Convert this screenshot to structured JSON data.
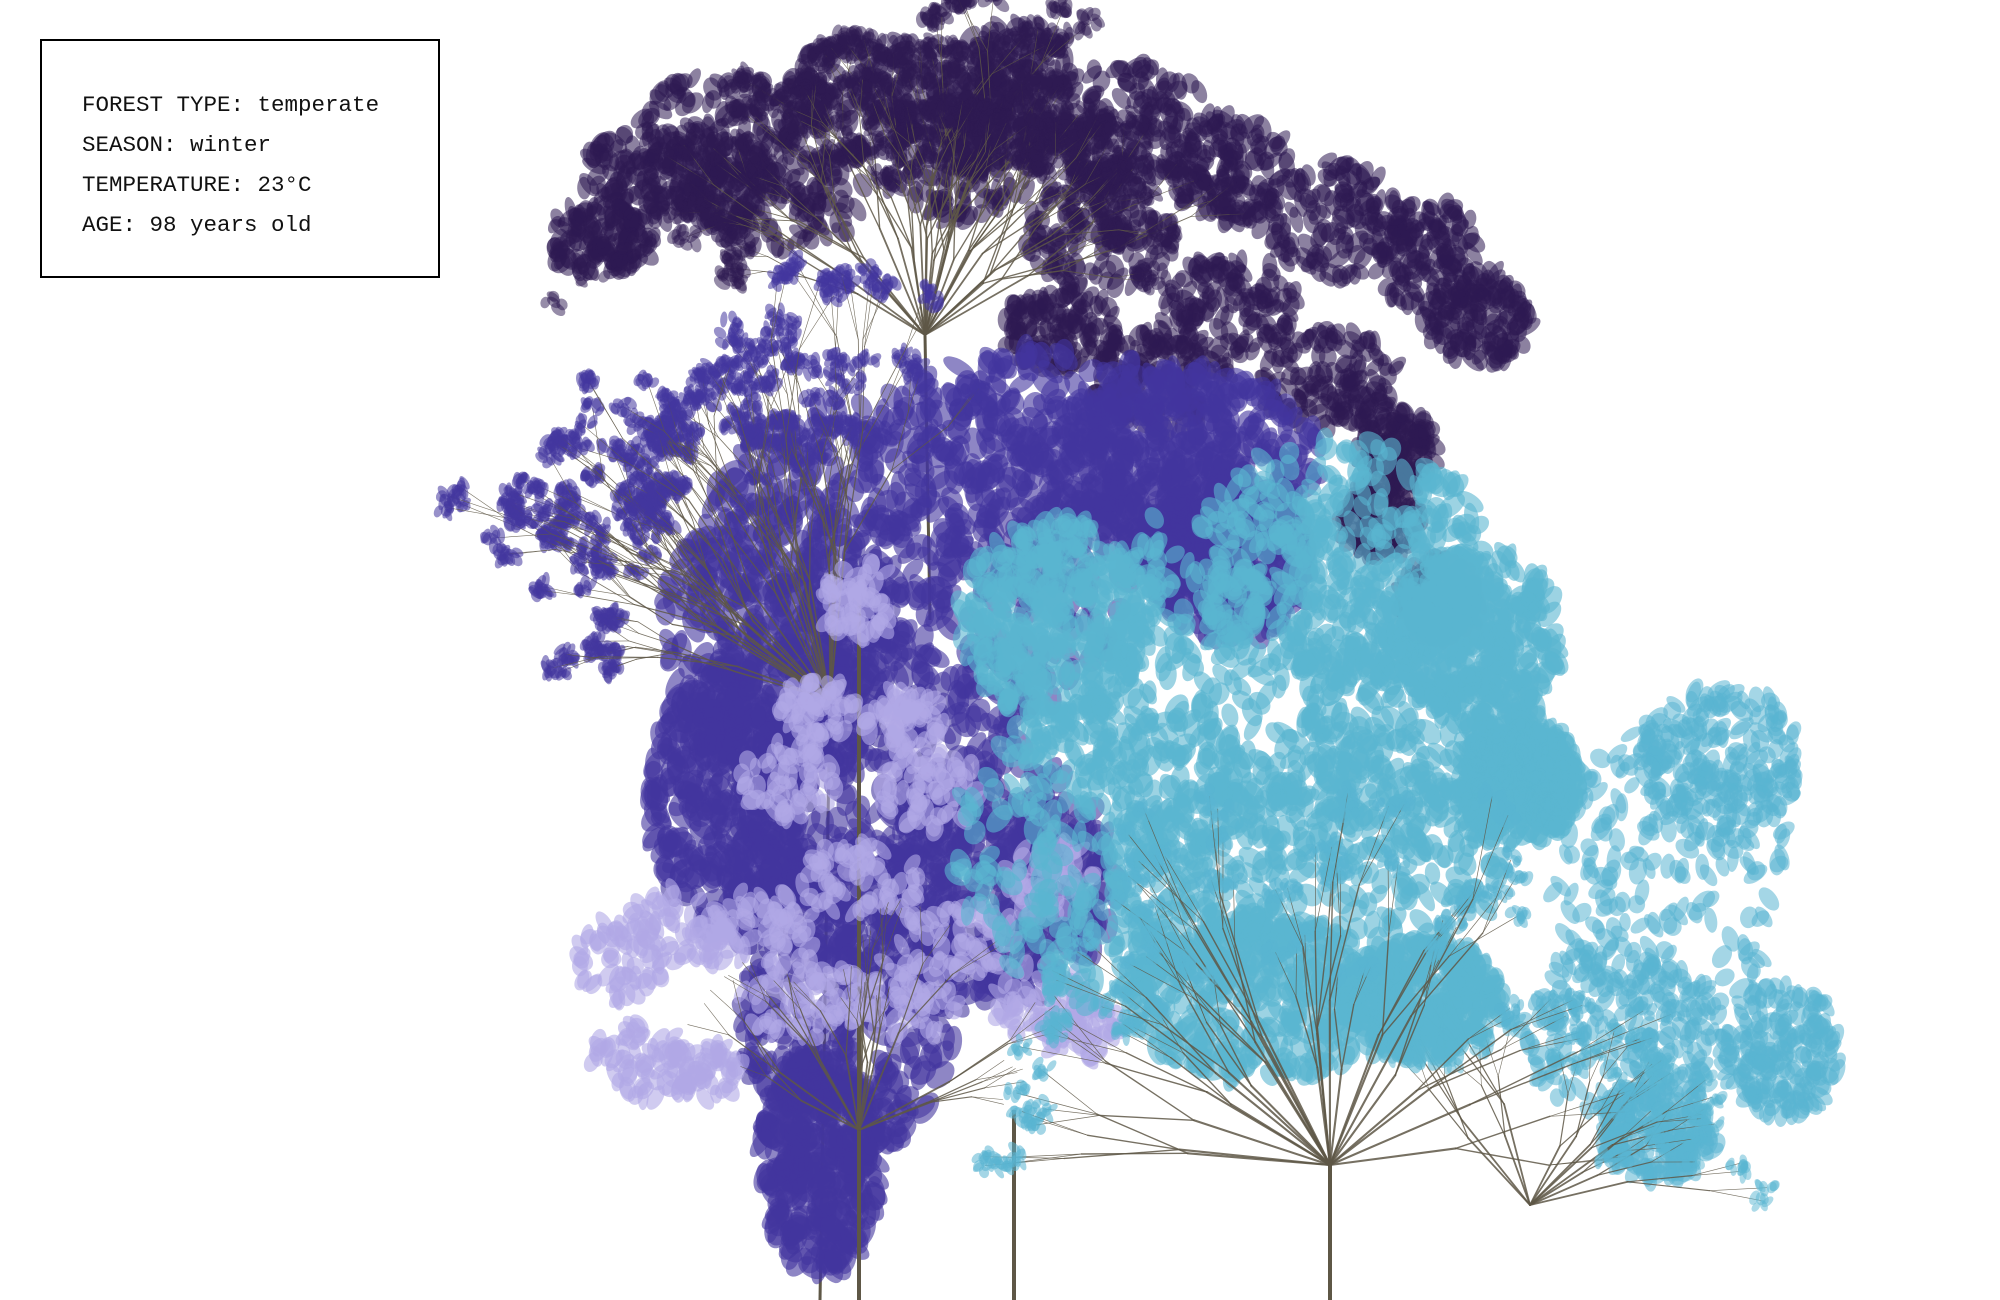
{
  "info_panel": {
    "forest_type": {
      "label": "FOREST TYPE:",
      "value": "temperate"
    },
    "season": {
      "label": "SEASON:",
      "value": "winter"
    },
    "temperature": {
      "label": "TEMPERATURE:",
      "value": "23°C"
    },
    "age": {
      "label": "AGE:",
      "value": "98 years old"
    }
  },
  "colors": {
    "background": "#ffffff",
    "branch": "#5e5746",
    "tree_dark_purple": "#2e1a52",
    "tree_indigo": "#43369e",
    "tree_lavender": "#b0a8e6",
    "tree_cyan": "#5ab5d1"
  }
}
